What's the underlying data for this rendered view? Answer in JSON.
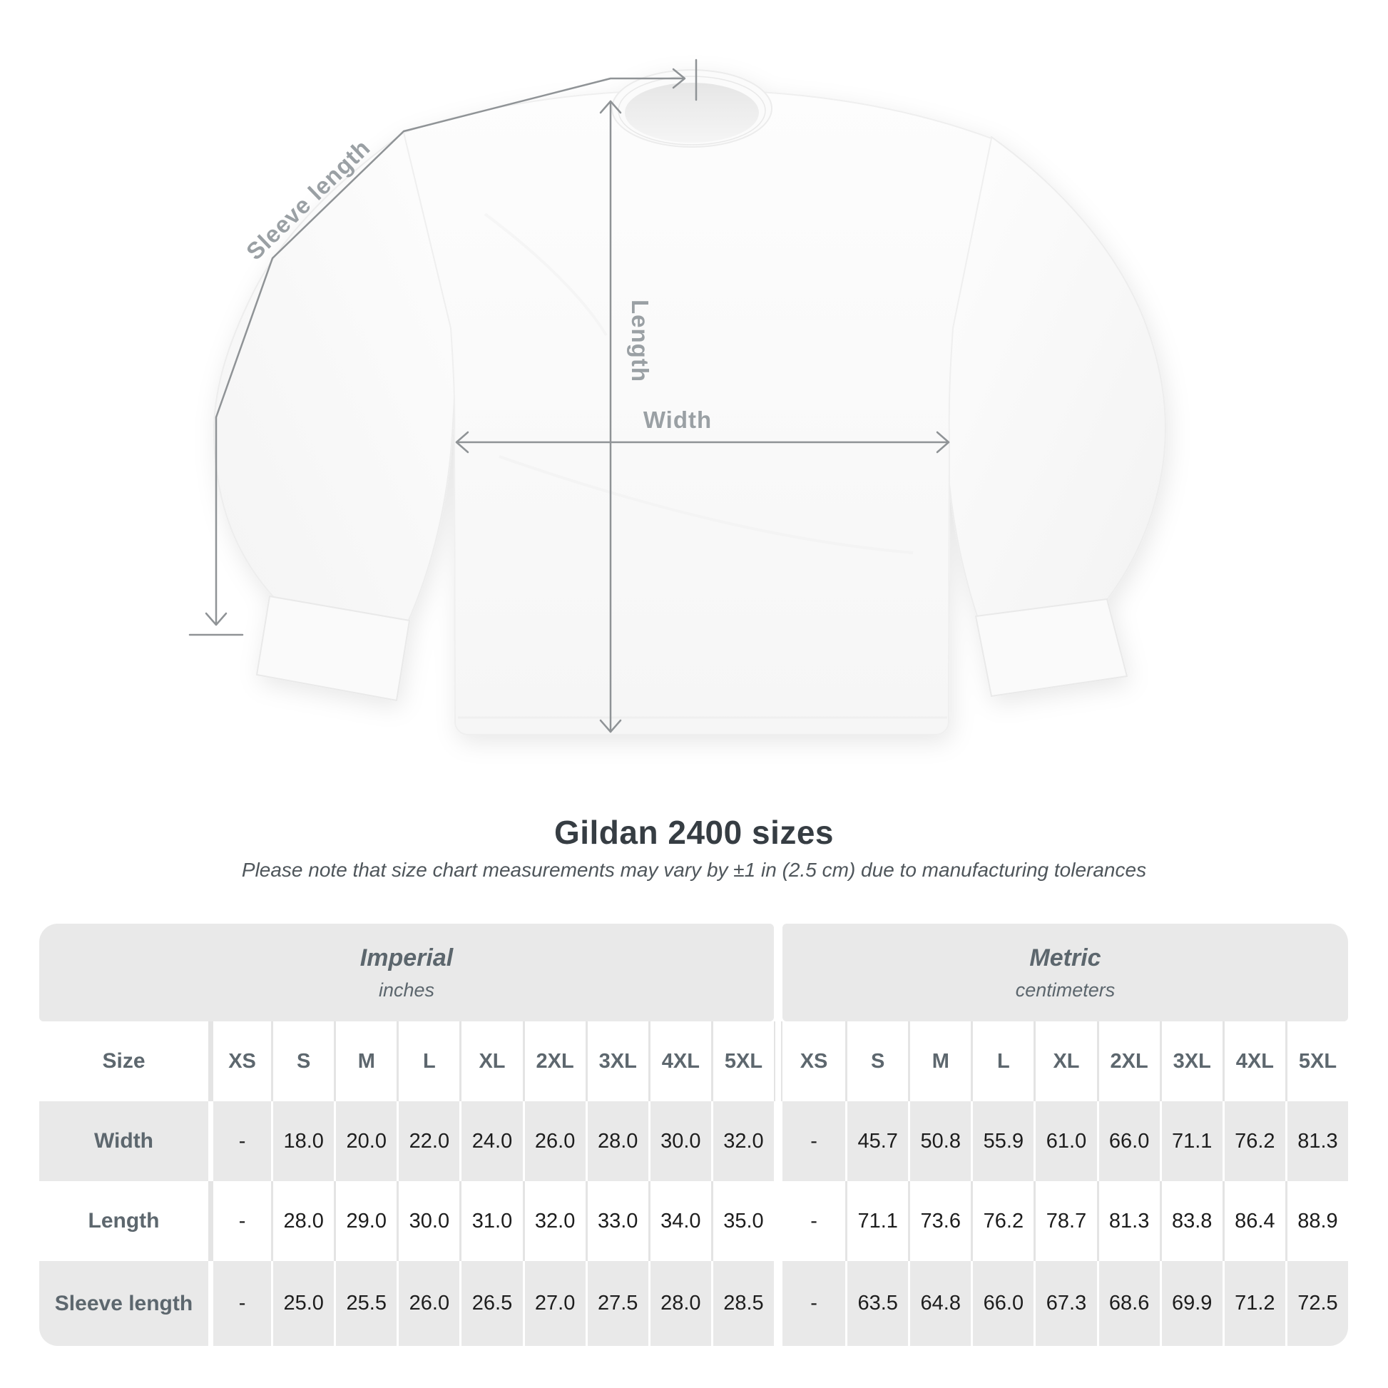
{
  "diagram": {
    "sleeve_length_label": "Sleeve length",
    "length_label": "Length",
    "width_label": "Width"
  },
  "heading": {
    "title": "Gildan 2400 sizes",
    "subtitle": "Please note that size chart measurements may vary by ±1 in (2.5 cm) due to manufacturing tolerances"
  },
  "table": {
    "unit_groups": [
      {
        "label": "Imperial",
        "sublabel": "inches"
      },
      {
        "label": "Metric",
        "sublabel": "centimeters"
      }
    ],
    "size_header": "Size",
    "sizes": [
      "XS",
      "S",
      "M",
      "L",
      "XL",
      "2XL",
      "3XL",
      "4XL",
      "5XL"
    ],
    "rows": [
      {
        "label": "Width",
        "imperial": [
          "-",
          "18.0",
          "20.0",
          "22.0",
          "24.0",
          "26.0",
          "28.0",
          "30.0",
          "32.0"
        ],
        "metric": [
          "-",
          "45.7",
          "50.8",
          "55.9",
          "61.0",
          "66.0",
          "71.1",
          "76.2",
          "81.3"
        ]
      },
      {
        "label": "Length",
        "imperial": [
          "-",
          "28.0",
          "29.0",
          "30.0",
          "31.0",
          "32.0",
          "33.0",
          "34.0",
          "35.0"
        ],
        "metric": [
          "-",
          "71.1",
          "73.6",
          "76.2",
          "78.7",
          "81.3",
          "83.8",
          "86.4",
          "88.9"
        ]
      },
      {
        "label": "Sleeve length",
        "imperial": [
          "-",
          "25.0",
          "25.5",
          "26.0",
          "26.5",
          "27.0",
          "27.5",
          "28.0",
          "28.5"
        ],
        "metric": [
          "-",
          "63.5",
          "64.8",
          "66.0",
          "67.3",
          "68.6",
          "69.9",
          "71.2",
          "72.5"
        ]
      }
    ]
  },
  "colors": {
    "band_gray": "#e9e9e9",
    "header_text": "#5d676e",
    "value_text": "#1d1d1d",
    "title_text": "#363d43",
    "subtitle_text": "#4f565b",
    "measure_line": "#8f9396",
    "measure_label": "#9aa0a4"
  }
}
